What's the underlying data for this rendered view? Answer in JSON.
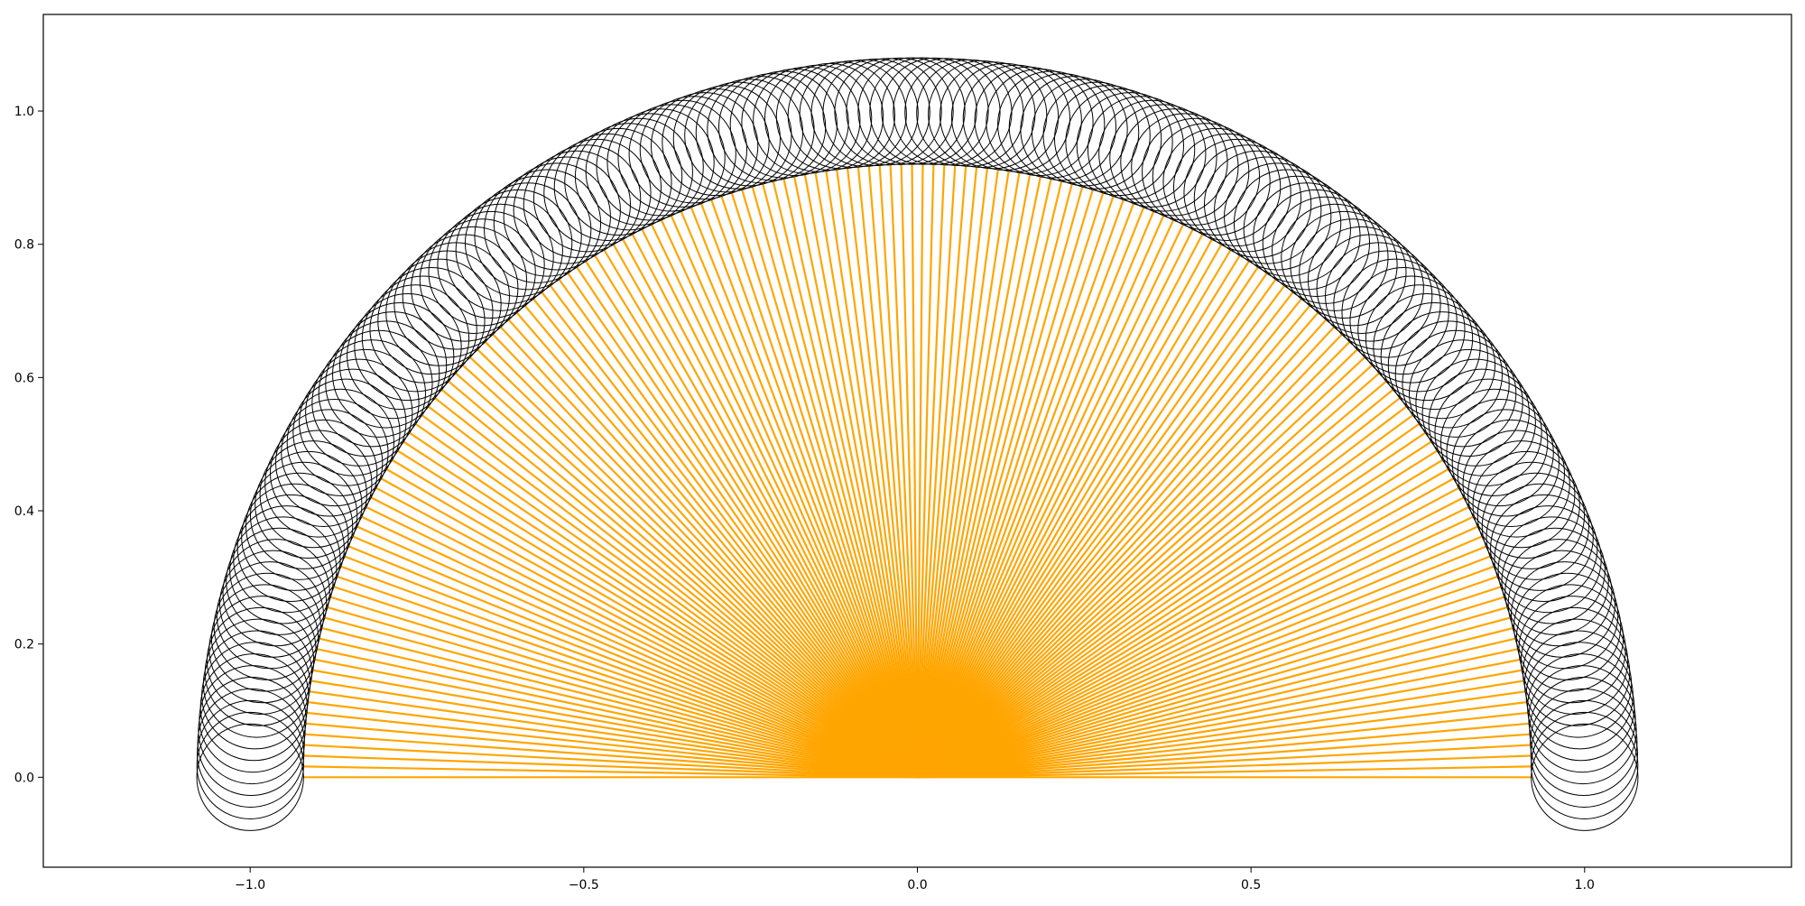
{
  "chart_data": {
    "type": "line",
    "title": "",
    "xlabel": "",
    "ylabel": "",
    "xlim": [
      -1.31,
      1.31
    ],
    "ylim": [
      -0.135,
      1.145
    ],
    "grid": false,
    "legend": "none",
    "xticks": [
      -1.0,
      -0.5,
      0.0,
      0.5,
      1.0
    ],
    "xtick_labels": [
      "−1.0",
      "−0.5",
      "0.0",
      "0.5",
      "1.0"
    ],
    "yticks": [
      0.0,
      0.2,
      0.4,
      0.6,
      0.8,
      1.0
    ],
    "ytick_labels": [
      "0.0",
      "0.2",
      "0.4",
      "0.6",
      "0.8",
      "1.0"
    ],
    "rays": {
      "origin": [
        0,
        0
      ],
      "length": 0.92,
      "count": 180,
      "angle_start_deg": 0,
      "angle_end_deg": 180,
      "color": "#ffa500"
    },
    "circles": {
      "center_radius": 1.0,
      "radius": 0.08,
      "count": 180,
      "angle_start_deg": 0,
      "angle_end_deg": 180,
      "color": "#000000"
    }
  }
}
